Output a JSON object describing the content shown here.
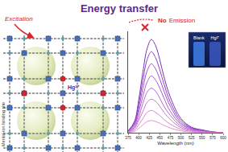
{
  "diagram": {
    "title": "Energy transfer",
    "excitation": "Excitation",
    "no_emission": {
      "no": "No",
      "emission": "Emission"
    },
    "mof_ion": "Hg²⁺",
    "binding_site": "Mental-ion binding site",
    "inset": {
      "blank": "Blank",
      "ion": "Hg²⁺"
    }
  },
  "chart_data": {
    "type": "line",
    "x_label": "Wavelength (nm)",
    "x": [
      375,
      390,
      400,
      410,
      420,
      430,
      440,
      450,
      460,
      475,
      500,
      525,
      550,
      575,
      600
    ],
    "series": [
      {
        "color": "#7b2fbe",
        "values": [
          1.8,
          11,
          32,
          60,
          83,
          92,
          86,
          72,
          55,
          35,
          14,
          5.5,
          2.8,
          0.9,
          0
        ]
      },
      {
        "color": "#8a3cc4",
        "values": [
          1.6,
          9.6,
          28,
          52,
          72,
          80,
          74,
          62,
          48,
          30,
          12,
          4.8,
          2.4,
          0.8,
          0
        ]
      },
      {
        "color": "#9a4ac9",
        "values": [
          1.4,
          8.2,
          24,
          44,
          61,
          68,
          63,
          53,
          41,
          26,
          10,
          4.1,
          2,
          0.7,
          0
        ]
      },
      {
        "color": "#ab58cc",
        "values": [
          1.1,
          6.7,
          20,
          36,
          50,
          56,
          52,
          44,
          34,
          21,
          8.4,
          3.4,
          1.7,
          0.6,
          0
        ]
      },
      {
        "color": "#bb66cf",
        "values": [
          0.9,
          5.3,
          15,
          29,
          40,
          44,
          41,
          34,
          26,
          17,
          6.6,
          2.6,
          1.3,
          0.4,
          0
        ]
      },
      {
        "color": "#cb74d0",
        "values": [
          0.7,
          4,
          12,
          21,
          30,
          33,
          31,
          26,
          20,
          13,
          5,
          2,
          1,
          0.3,
          0
        ]
      },
      {
        "color": "#d982d0",
        "values": [
          0.4,
          2.6,
          7.7,
          14,
          20,
          22,
          20,
          17,
          13,
          8.4,
          3.3,
          1.3,
          0.7,
          0.2,
          0
        ]
      },
      {
        "color": "#e590d0",
        "values": [
          0.2,
          1.4,
          4.2,
          7.8,
          11,
          12,
          11,
          9.4,
          7.2,
          4.6,
          1.8,
          0.7,
          0.4,
          0.1,
          0
        ]
      }
    ],
    "xlim": [
      375,
      600
    ],
    "xticks": [
      375,
      400,
      425,
      450,
      475,
      500,
      525,
      550,
      575,
      600
    ],
    "ylim": [
      0,
      100
    ],
    "tick_labels": "x",
    "grid": false
  }
}
